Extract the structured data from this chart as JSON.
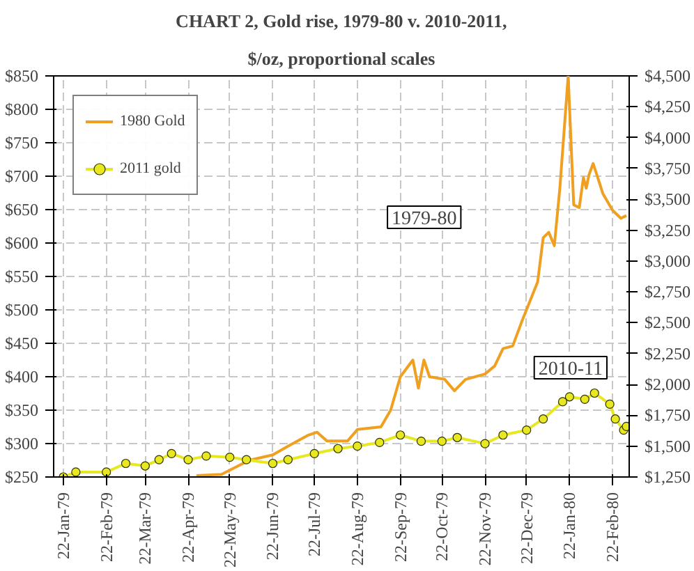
{
  "chart_data": {
    "type": "line",
    "title": "CHART 2, Gold rise, 1979-80 v. 2010-2011,",
    "subtitle": "$/oz, proportional scales",
    "xlim": [
      "1979-01-15",
      "1980-03-05"
    ],
    "xticks": [
      {
        "value": "1979-01-22",
        "label": "22-Jan-79"
      },
      {
        "value": "1979-02-22",
        "label": "22-Feb-79"
      },
      {
        "value": "1979-03-22",
        "label": "22-Mar-79"
      },
      {
        "value": "1979-04-22",
        "label": "22-Apr-79"
      },
      {
        "value": "1979-05-22",
        "label": "22-May-79"
      },
      {
        "value": "1979-06-22",
        "label": "22-Jun-79"
      },
      {
        "value": "1979-07-22",
        "label": "22-Jul-79"
      },
      {
        "value": "1979-08-22",
        "label": "22-Aug-79"
      },
      {
        "value": "1979-09-22",
        "label": "22-Sep-79"
      },
      {
        "value": "1979-10-22",
        "label": "22-Oct-79"
      },
      {
        "value": "1979-11-22",
        "label": "22-Nov-79"
      },
      {
        "value": "1979-12-22",
        "label": "22-Dec-79"
      },
      {
        "value": "1980-01-22",
        "label": "22-Jan-80"
      },
      {
        "value": "1980-02-22",
        "label": "22-Feb-80"
      }
    ],
    "ylim": [
      250,
      850
    ],
    "yticks": [
      {
        "value": 250,
        "label": "$250"
      },
      {
        "value": 300,
        "label": "$300"
      },
      {
        "value": 350,
        "label": "$350"
      },
      {
        "value": 400,
        "label": "$400"
      },
      {
        "value": 450,
        "label": "$450"
      },
      {
        "value": 500,
        "label": "$500"
      },
      {
        "value": 550,
        "label": "$550"
      },
      {
        "value": 600,
        "label": "$600"
      },
      {
        "value": 650,
        "label": "$650"
      },
      {
        "value": 700,
        "label": "$700"
      },
      {
        "value": 750,
        "label": "$750"
      },
      {
        "value": 800,
        "label": "$800"
      },
      {
        "value": 850,
        "label": "$850"
      }
    ],
    "y2lim": [
      1250,
      4500
    ],
    "y2ticks": [
      {
        "value": 1250,
        "label": "$1,250"
      },
      {
        "value": 1500,
        "label": "$1,500"
      },
      {
        "value": 1750,
        "label": "$1,750"
      },
      {
        "value": 2000,
        "label": "$2,000"
      },
      {
        "value": 2250,
        "label": "$2,250"
      },
      {
        "value": 2500,
        "label": "$2,500"
      },
      {
        "value": 2750,
        "label": "$2,750"
      },
      {
        "value": 3000,
        "label": "$3,000"
      },
      {
        "value": 3250,
        "label": "$3,250"
      },
      {
        "value": 3500,
        "label": "$3,500"
      },
      {
        "value": 3750,
        "label": "$3,750"
      },
      {
        "value": 4000,
        "label": "$4,000"
      },
      {
        "value": 4250,
        "label": "$4,250"
      },
      {
        "value": 4500,
        "label": "$4,500"
      }
    ],
    "grid": true,
    "legend": "top left",
    "series": [
      {
        "name": "1980 Gold",
        "color": "#f0a020",
        "marker": "none",
        "x": [
          "1979-04-28",
          "1979-05-16",
          "1979-06-05",
          "1979-06-22",
          "1979-07-03",
          "1979-07-17",
          "1979-07-24",
          "1979-07-31",
          "1979-08-15",
          "1979-08-22",
          "1979-09-08",
          "1979-09-15",
          "1979-09-22",
          "1979-10-01",
          "1979-10-05",
          "1979-10-09",
          "1979-10-13",
          "1979-10-24",
          "1979-10-31",
          "1979-11-08",
          "1979-11-22",
          "1979-11-29",
          "1979-12-05",
          "1979-12-12",
          "1979-12-19",
          "1979-12-30",
          "1980-01-03",
          "1980-01-07",
          "1980-01-11",
          "1980-01-15",
          "1980-01-21",
          "1980-01-25",
          "1980-01-29",
          "1980-02-01",
          "1980-02-03",
          "1980-02-05",
          "1980-02-08",
          "1980-02-11",
          "1980-02-15",
          "1980-02-22",
          "1980-02-28",
          "1980-03-03"
        ],
        "values": [
          252,
          254,
          275,
          283,
          296,
          312,
          317,
          304,
          304,
          321,
          325,
          350,
          400,
          425,
          383,
          425,
          400,
          396,
          379,
          396,
          404,
          416,
          442,
          446,
          485,
          542,
          608,
          616,
          596,
          682,
          850,
          657,
          653,
          698,
          682,
          702,
          719,
          700,
          674,
          649,
          637,
          641
        ]
      },
      {
        "name": "2011 gold",
        "color": "#e8e820",
        "marker": "circle",
        "axis": "y2",
        "x": [
          "1979-01-22",
          "1979-01-31",
          "1979-02-22",
          "1979-03-08",
          "1979-03-22",
          "1979-04-01",
          "1979-04-10",
          "1979-04-22",
          "1979-05-05",
          "1979-05-22",
          "1979-06-03",
          "1979-06-22",
          "1979-07-03",
          "1979-07-22",
          "1979-08-08",
          "1979-08-22",
          "1979-09-07",
          "1979-09-22",
          "1979-10-07",
          "1979-10-22",
          "1979-11-02",
          "1979-11-22",
          "1979-12-05",
          "1979-12-22",
          "1980-01-03",
          "1980-01-17",
          "1980-01-22",
          "1980-02-02",
          "1980-02-09",
          "1980-02-20",
          "1980-02-24",
          "1980-03-01",
          "1980-03-03"
        ],
        "values": [
          1250,
          1290,
          1290,
          1360,
          1340,
          1390,
          1440,
          1390,
          1420,
          1410,
          1390,
          1360,
          1390,
          1440,
          1480,
          1500,
          1530,
          1590,
          1540,
          1540,
          1570,
          1520,
          1590,
          1630,
          1720,
          1860,
          1900,
          1880,
          1930,
          1840,
          1720,
          1630,
          1660
        ]
      }
    ],
    "annotations": [
      "1979-80",
      "2010-11"
    ]
  }
}
